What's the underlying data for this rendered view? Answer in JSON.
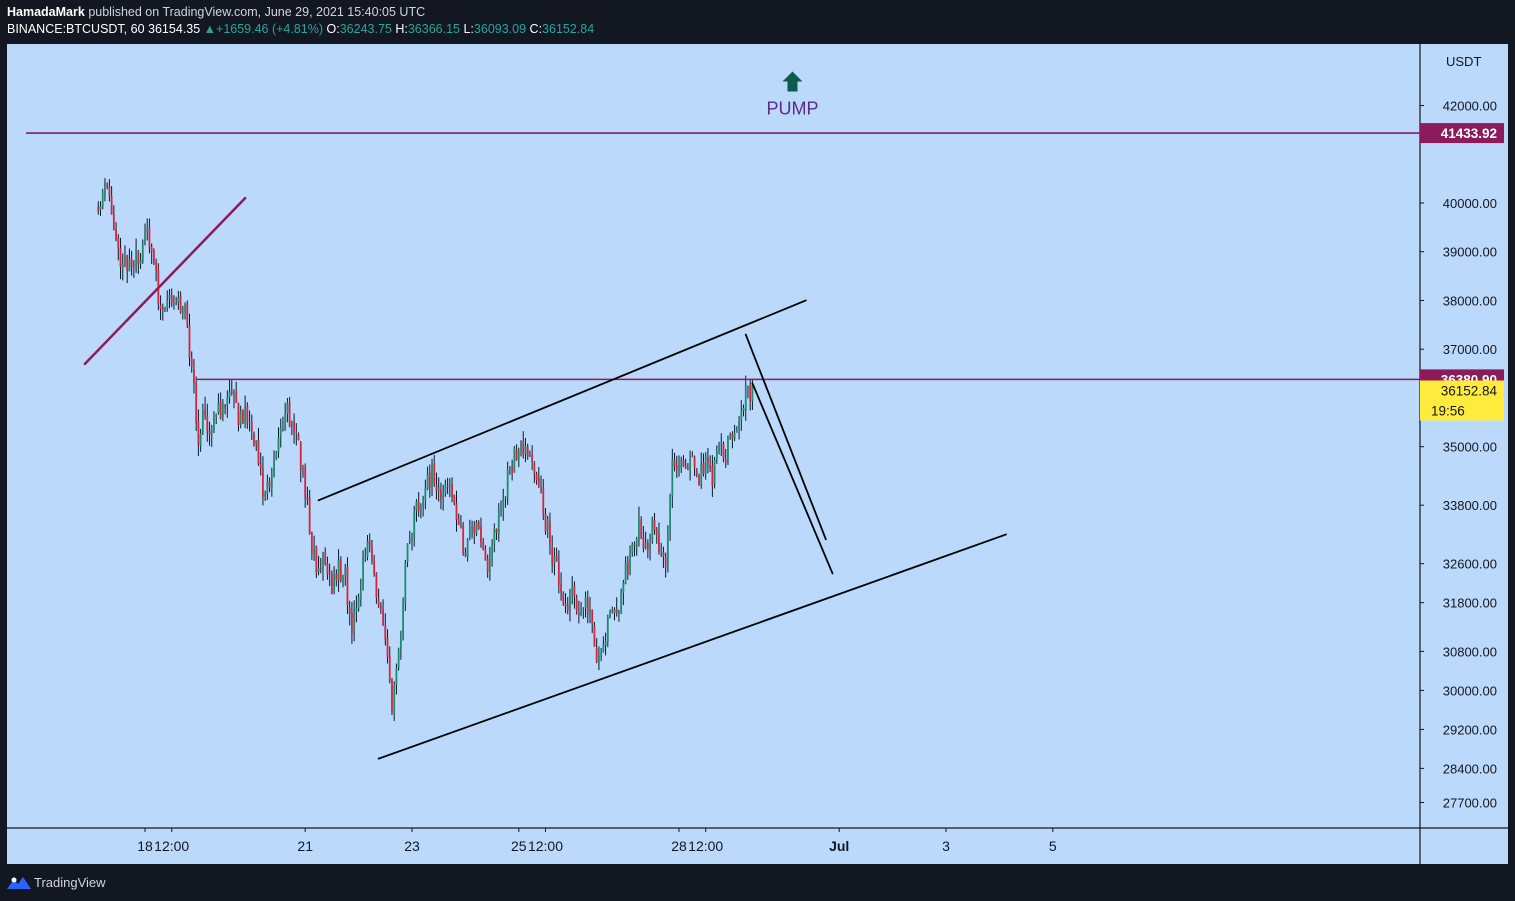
{
  "header": {
    "author": "HamadaMark",
    "published_text": "published on TradingView.com, June 29, 2021 15:40:05 UTC",
    "symbol": "BINANCE:BTCUSDT, 60",
    "last": "36154.35",
    "change": "+1659.46 (+4.81%)",
    "o_label": "O:",
    "o_value": "36243.75",
    "h_label": "H:",
    "h_value": "36366.15",
    "l_label": "L:",
    "l_value": "36093.09",
    "c_label": "C:",
    "c_value": "36152.84"
  },
  "footer": {
    "brand": "TradingView"
  },
  "colors": {
    "plot_bg": "#bbd9fb",
    "frame": "#131722",
    "up": "#1b8c6e",
    "down": "#d4253d",
    "wick": "#0b1a2a",
    "level": "#8c1b5c",
    "trend": "#000000",
    "price_badge": "#ffeb3b",
    "pump_text": "#5b2a86",
    "pump_arrow": "#0b5b4e"
  },
  "chart_data": {
    "type": "candlestick",
    "symbol": "BINANCE:BTCUSDT",
    "timeframe": "60",
    "currency": "USDT",
    "ylim": [
      27300,
      43200
    ],
    "y_ticks": [
      "42000.00",
      "40000.00",
      "39000.00",
      "38000.00",
      "37000.00",
      "35000.00",
      "33800.00",
      "32600.00",
      "31800.00",
      "30800.00",
      "30000.00",
      "29200.00",
      "28400.00",
      "27700.00"
    ],
    "y_tick_values": [
      42000,
      40000,
      39000,
      38000,
      37000,
      35000,
      33800,
      32600,
      31800,
      30800,
      30000,
      29200,
      28400,
      27700
    ],
    "x_ticks": [
      {
        "label": "18",
        "date": "2021-06-18 00:00"
      },
      {
        "label": "12:00",
        "date": "2021-06-18 12:00"
      },
      {
        "label": "21",
        "date": "2021-06-21 00:00"
      },
      {
        "label": "23",
        "date": "2021-06-23 00:00"
      },
      {
        "label": "25",
        "date": "2021-06-25 00:00"
      },
      {
        "label": "12:00",
        "date": "2021-06-25 12:00"
      },
      {
        "label": "28",
        "date": "2021-06-28 00:00"
      },
      {
        "label": "12:00",
        "date": "2021-06-28 12:00"
      },
      {
        "label": "Jul",
        "date": "2021-07-01 00:00"
      },
      {
        "label": "3",
        "date": "2021-07-03 00:00"
      },
      {
        "label": "5",
        "date": "2021-07-05 00:00"
      }
    ],
    "close_path": [
      [
        "2021-06-17 03:00",
        40100
      ],
      [
        "2021-06-17 06:00",
        40300
      ],
      [
        "2021-06-17 09:00",
        39900
      ],
      [
        "2021-06-17 12:00",
        39000
      ],
      [
        "2021-06-17 15:00",
        38800
      ],
      [
        "2021-06-17 18:00",
        38600
      ],
      [
        "2021-06-17 21:00",
        38900
      ],
      [
        "2021-06-18 00:00",
        39300
      ],
      [
        "2021-06-18 03:00",
        39100
      ],
      [
        "2021-06-18 06:00",
        38000
      ],
      [
        "2021-06-18 09:00",
        37900
      ],
      [
        "2021-06-18 12:00",
        38100
      ],
      [
        "2021-06-18 15:00",
        38000
      ],
      [
        "2021-06-18 18:00",
        37700
      ],
      [
        "2021-06-18 21:00",
        36600
      ],
      [
        "2021-06-19 00:00",
        35300
      ],
      [
        "2021-06-19 03:00",
        35600
      ],
      [
        "2021-06-19 06:00",
        35400
      ],
      [
        "2021-06-19 09:00",
        35700
      ],
      [
        "2021-06-19 12:00",
        35800
      ],
      [
        "2021-06-19 15:00",
        36000
      ],
      [
        "2021-06-19 18:00",
        35700
      ],
      [
        "2021-06-19 21:00",
        35600
      ],
      [
        "2021-06-20 00:00",
        35500
      ],
      [
        "2021-06-20 03:00",
        34700
      ],
      [
        "2021-06-20 06:00",
        33900
      ],
      [
        "2021-06-20 09:00",
        34300
      ],
      [
        "2021-06-20 12:00",
        35200
      ],
      [
        "2021-06-20 15:00",
        35800
      ],
      [
        "2021-06-20 18:00",
        35600
      ],
      [
        "2021-06-20 21:00",
        35000
      ],
      [
        "2021-06-21 00:00",
        34200
      ],
      [
        "2021-06-21 03:00",
        32900
      ],
      [
        "2021-06-21 06:00",
        32400
      ],
      [
        "2021-06-21 09:00",
        32800
      ],
      [
        "2021-06-21 12:00",
        32100
      ],
      [
        "2021-06-21 15:00",
        32600
      ],
      [
        "2021-06-21 18:00",
        32300
      ],
      [
        "2021-06-21 21:00",
        31300
      ],
      [
        "2021-06-22 00:00",
        32000
      ],
      [
        "2021-06-22 03:00",
        32900
      ],
      [
        "2021-06-22 06:00",
        32800
      ],
      [
        "2021-06-22 09:00",
        31700
      ],
      [
        "2021-06-22 12:00",
        31200
      ],
      [
        "2021-06-22 15:00",
        29500
      ],
      [
        "2021-06-22 18:00",
        30700
      ],
      [
        "2021-06-22 21:00",
        32500
      ],
      [
        "2021-06-23 00:00",
        33300
      ],
      [
        "2021-06-23 03:00",
        33900
      ],
      [
        "2021-06-23 06:00",
        34200
      ],
      [
        "2021-06-23 09:00",
        34400
      ],
      [
        "2021-06-23 12:00",
        34000
      ],
      [
        "2021-06-23 15:00",
        34300
      ],
      [
        "2021-06-23 18:00",
        33900
      ],
      [
        "2021-06-23 21:00",
        33500
      ],
      [
        "2021-06-24 00:00",
        32800
      ],
      [
        "2021-06-24 03:00",
        33400
      ],
      [
        "2021-06-24 06:00",
        33200
      ],
      [
        "2021-06-24 09:00",
        32500
      ],
      [
        "2021-06-24 12:00",
        33000
      ],
      [
        "2021-06-24 15:00",
        33600
      ],
      [
        "2021-06-24 18:00",
        34200
      ],
      [
        "2021-06-24 21:00",
        34700
      ],
      [
        "2021-06-25 00:00",
        34900
      ],
      [
        "2021-06-25 03:00",
        35100
      ],
      [
        "2021-06-25 06:00",
        34500
      ],
      [
        "2021-06-25 09:00",
        34100
      ],
      [
        "2021-06-25 12:00",
        33500
      ],
      [
        "2021-06-25 15:00",
        32800
      ],
      [
        "2021-06-25 18:00",
        32200
      ],
      [
        "2021-06-25 21:00",
        31700
      ],
      [
        "2021-06-26 00:00",
        31900
      ],
      [
        "2021-06-26 03:00",
        31500
      ],
      [
        "2021-06-26 06:00",
        32000
      ],
      [
        "2021-06-26 09:00",
        31400
      ],
      [
        "2021-06-26 12:00",
        30500
      ],
      [
        "2021-06-26 15:00",
        31200
      ],
      [
        "2021-06-26 18:00",
        31500
      ],
      [
        "2021-06-26 21:00",
        31600
      ],
      [
        "2021-06-27 00:00",
        32400
      ],
      [
        "2021-06-27 03:00",
        33000
      ],
      [
        "2021-06-27 06:00",
        33400
      ],
      [
        "2021-06-27 09:00",
        33000
      ],
      [
        "2021-06-27 12:00",
        33300
      ],
      [
        "2021-06-27 15:00",
        33000
      ],
      [
        "2021-06-27 18:00",
        32800
      ],
      [
        "2021-06-27 21:00",
        34500
      ],
      [
        "2021-06-28 00:00",
        34700
      ],
      [
        "2021-06-28 03:00",
        34500
      ],
      [
        "2021-06-28 06:00",
        34900
      ],
      [
        "2021-06-28 09:00",
        34300
      ],
      [
        "2021-06-28 12:00",
        34600
      ],
      [
        "2021-06-28 15:00",
        34400
      ],
      [
        "2021-06-28 18:00",
        34900
      ],
      [
        "2021-06-28 21:00",
        34800
      ],
      [
        "2021-06-29 00:00",
        35300
      ],
      [
        "2021-06-29 03:00",
        35700
      ],
      [
        "2021-06-29 06:00",
        36000
      ],
      [
        "2021-06-29 09:00",
        36152.84
      ]
    ],
    "horizontal_levels": [
      {
        "value": 41433.92,
        "label": "41433.92"
      },
      {
        "value": 36380.9,
        "label": "36380.90"
      }
    ],
    "last_price": {
      "value": 36152.84,
      "label": "36152.84",
      "countdown": "19:56"
    },
    "trendlines": [
      {
        "kind": "resistance-old",
        "from": [
          "2021-06-16 21:00",
          36700
        ],
        "to": [
          "2021-06-19 21:00",
          40100
        ]
      },
      {
        "kind": "channel-top",
        "from": [
          "2021-06-21 06:00",
          33900
        ],
        "to": [
          "2021-06-30 09:00",
          38000
        ]
      },
      {
        "kind": "channel-bottom",
        "from": [
          "2021-06-22 09:00",
          28600
        ],
        "to": [
          "2021-07-04 03:00",
          33200
        ]
      },
      {
        "kind": "projection-1",
        "from": [
          "2021-06-29 06:00",
          37300
        ],
        "to": [
          "2021-06-30 18:00",
          33100
        ]
      },
      {
        "kind": "projection-2",
        "from": [
          "2021-06-29 09:00",
          36300
        ],
        "to": [
          "2021-06-30 21:00",
          32400
        ]
      }
    ],
    "annotation": {
      "text": "PUMP",
      "arrow": "up",
      "at": [
        "2021-06-30 03:00",
        42000
      ]
    }
  }
}
